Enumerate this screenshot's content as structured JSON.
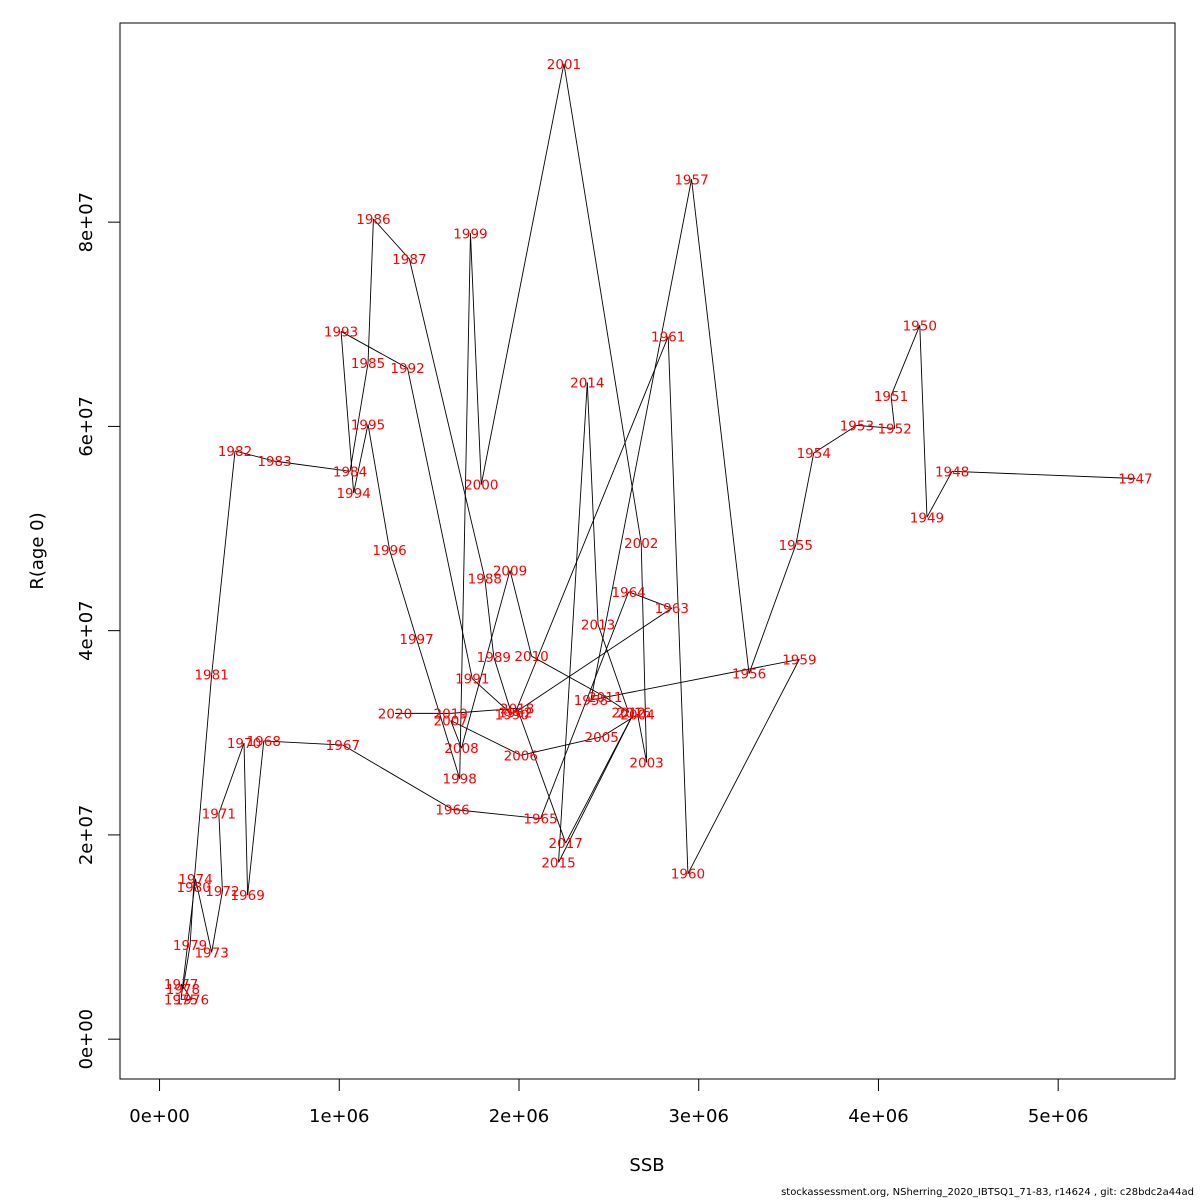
{
  "chart_data": {
    "type": "scatter",
    "subtype": "connected-labeled-path",
    "title": "",
    "xlabel": "SSB",
    "ylabel": "R(age 0)",
    "xlim": [
      -220000,
      5650000
    ],
    "ylim": [
      -3900000,
      99500000
    ],
    "x_ticks": [
      0,
      1000000,
      2000000,
      3000000,
      4000000,
      5000000
    ],
    "x_tick_labels": [
      "0e+00",
      "1e+06",
      "2e+06",
      "3e+06",
      "4e+06",
      "5e+06"
    ],
    "y_ticks": [
      0,
      20000000,
      40000000,
      60000000,
      80000000
    ],
    "y_tick_labels": [
      "0e+00",
      "2e+07",
      "4e+07",
      "6e+07",
      "8e+07"
    ],
    "grid": false,
    "legend": "none",
    "label_color": "#ff0000",
    "line_color": "#000000",
    "points": [
      {
        "year": "1947",
        "ssb": 5430000,
        "r": 54900000
      },
      {
        "year": "1948",
        "ssb": 4410000,
        "r": 55600000
      },
      {
        "year": "1949",
        "ssb": 4270000,
        "r": 51100000
      },
      {
        "year": "1950",
        "ssb": 4230000,
        "r": 69900000
      },
      {
        "year": "1951",
        "ssb": 4070000,
        "r": 63000000
      },
      {
        "year": "1952",
        "ssb": 4090000,
        "r": 59800000
      },
      {
        "year": "1953",
        "ssb": 3880000,
        "r": 60100000
      },
      {
        "year": "1954",
        "ssb": 3640000,
        "r": 57400000
      },
      {
        "year": "1955",
        "ssb": 3540000,
        "r": 48400000
      },
      {
        "year": "1956",
        "ssb": 3280000,
        "r": 35800000
      },
      {
        "year": "1957",
        "ssb": 2960000,
        "r": 84200000
      },
      {
        "year": "1958",
        "ssb": 2400000,
        "r": 33200000
      },
      {
        "year": "1959",
        "ssb": 3560000,
        "r": 37200000
      },
      {
        "year": "1960",
        "ssb": 2940000,
        "r": 16200000
      },
      {
        "year": "1961",
        "ssb": 2830000,
        "r": 68800000
      },
      {
        "year": "1962",
        "ssb": 1980000,
        "r": 32000000
      },
      {
        "year": "1963",
        "ssb": 2850000,
        "r": 42200000
      },
      {
        "year": "1964",
        "ssb": 2610000,
        "r": 43800000
      },
      {
        "year": "1965",
        "ssb": 2120000,
        "r": 21600000
      },
      {
        "year": "1966",
        "ssb": 1630000,
        "r": 22500000
      },
      {
        "year": "1967",
        "ssb": 1020000,
        "r": 28800000
      },
      {
        "year": "1968",
        "ssb": 580000,
        "r": 29200000
      },
      {
        "year": "1969",
        "ssb": 490000,
        "r": 14100000
      },
      {
        "year": "1970",
        "ssb": 470000,
        "r": 29000000
      },
      {
        "year": "1971",
        "ssb": 330000,
        "r": 22100000
      },
      {
        "year": "1972",
        "ssb": 350000,
        "r": 14500000
      },
      {
        "year": "1973",
        "ssb": 290000,
        "r": 8500000
      },
      {
        "year": "1974",
        "ssb": 200000,
        "r": 15700000
      },
      {
        "year": "1975",
        "ssb": 120000,
        "r": 3900000
      },
      {
        "year": "1976",
        "ssb": 180000,
        "r": 3900000
      },
      {
        "year": "1977",
        "ssb": 120000,
        "r": 5400000
      },
      {
        "year": "1978",
        "ssb": 130000,
        "r": 4900000
      },
      {
        "year": "1979",
        "ssb": 170000,
        "r": 9200000
      },
      {
        "year": "1980",
        "ssb": 190000,
        "r": 14900000
      },
      {
        "year": "1981",
        "ssb": 290000,
        "r": 35700000
      },
      {
        "year": "1982",
        "ssb": 420000,
        "r": 57600000
      },
      {
        "year": "1983",
        "ssb": 640000,
        "r": 56600000
      },
      {
        "year": "1984",
        "ssb": 1060000,
        "r": 55600000
      },
      {
        "year": "1985",
        "ssb": 1160000,
        "r": 66200000
      },
      {
        "year": "1986",
        "ssb": 1190000,
        "r": 80300000
      },
      {
        "year": "1987",
        "ssb": 1390000,
        "r": 76400000
      },
      {
        "year": "1988",
        "ssb": 1810000,
        "r": 45100000
      },
      {
        "year": "1989",
        "ssb": 1860000,
        "r": 37400000
      },
      {
        "year": "1990",
        "ssb": 1960000,
        "r": 31800000
      },
      {
        "year": "1991",
        "ssb": 1740000,
        "r": 35300000
      },
      {
        "year": "1992",
        "ssb": 1380000,
        "r": 65700000
      },
      {
        "year": "1993",
        "ssb": 1010000,
        "r": 69300000
      },
      {
        "year": "1994",
        "ssb": 1080000,
        "r": 53500000
      },
      {
        "year": "1995",
        "ssb": 1160000,
        "r": 60200000
      },
      {
        "year": "1996",
        "ssb": 1280000,
        "r": 47900000
      },
      {
        "year": "1997",
        "ssb": 1430000,
        "r": 39200000
      },
      {
        "year": "1998",
        "ssb": 1670000,
        "r": 25500000
      },
      {
        "year": "1999",
        "ssb": 1730000,
        "r": 78900000
      },
      {
        "year": "2000",
        "ssb": 1790000,
        "r": 54300000
      },
      {
        "year": "2001",
        "ssb": 2250000,
        "r": 95500000
      },
      {
        "year": "2002",
        "ssb": 2680000,
        "r": 48600000
      },
      {
        "year": "2003",
        "ssb": 2710000,
        "r": 27100000
      },
      {
        "year": "2004",
        "ssb": 2660000,
        "r": 31800000
      },
      {
        "year": "2005",
        "ssb": 2460000,
        "r": 29600000
      },
      {
        "year": "2006",
        "ssb": 2010000,
        "r": 27800000
      },
      {
        "year": "2007",
        "ssb": 1620000,
        "r": 31200000
      },
      {
        "year": "2008",
        "ssb": 1680000,
        "r": 28500000
      },
      {
        "year": "2009",
        "ssb": 1950000,
        "r": 45900000
      },
      {
        "year": "2010",
        "ssb": 2070000,
        "r": 37500000
      },
      {
        "year": "2011",
        "ssb": 2480000,
        "r": 33500000
      },
      {
        "year": "2012",
        "ssb": 2610000,
        "r": 32000000
      },
      {
        "year": "2013",
        "ssb": 2440000,
        "r": 40600000
      },
      {
        "year": "2014",
        "ssb": 2380000,
        "r": 64300000
      },
      {
        "year": "2015",
        "ssb": 2220000,
        "r": 17300000
      },
      {
        "year": "2016",
        "ssb": 2640000,
        "r": 32000000
      },
      {
        "year": "2017",
        "ssb": 2260000,
        "r": 19200000
      },
      {
        "year": "2018",
        "ssb": 1990000,
        "r": 32400000
      },
      {
        "year": "2019",
        "ssb": 1620000,
        "r": 31900000
      },
      {
        "year": "2020",
        "ssb": 1310000,
        "r": 31900000
      }
    ]
  },
  "footer": {
    "credit": "stockassessment.org, NSherring_2020_IBTSQ1_71-83, r14624 , git: c28bdc2a44ad"
  }
}
